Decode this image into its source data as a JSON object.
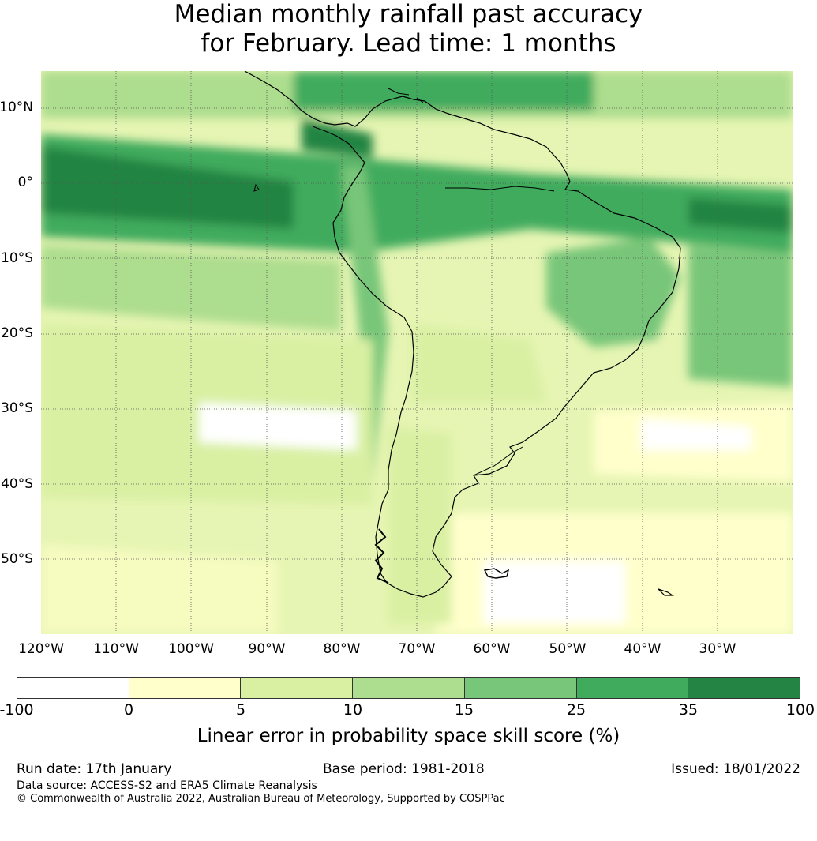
{
  "title_line1": "Median monthly rainfall past accuracy",
  "title_line2": "for February. Lead time: 1 months",
  "map": {
    "lat_labels": [
      "10°N",
      "0°",
      "10°S",
      "20°S",
      "30°S",
      "40°S",
      "50°S"
    ],
    "lon_labels": [
      "120°W",
      "110°W",
      "100°W",
      "90°W",
      "80°W",
      "70°W",
      "60°W",
      "50°W",
      "40°W",
      "30°W"
    ],
    "lat_range": [
      -60,
      15
    ],
    "lon_range": [
      -120,
      -20
    ]
  },
  "colorbar": {
    "ticks": [
      "-100",
      "0",
      "5",
      "10",
      "15",
      "25",
      "35",
      "100"
    ],
    "colors": [
      "#ffffff",
      "#ffffcc",
      "#d9f0a3",
      "#addd8e",
      "#78c679",
      "#41ab5d",
      "#238443"
    ],
    "label": "Linear error in probability space skill score (%)"
  },
  "footer": {
    "run_date": "Run date: 17th January",
    "base_period": "Base period: 1981-2018",
    "issued": "Issued: 18/01/2022",
    "data_source": "Data source: ACCESS-S2 and ERA5 Climate Reanalysis",
    "copyright": "© Commonwealth of Australia 2022, Australian Bureau of Meteorology, Supported by COSPPac"
  }
}
